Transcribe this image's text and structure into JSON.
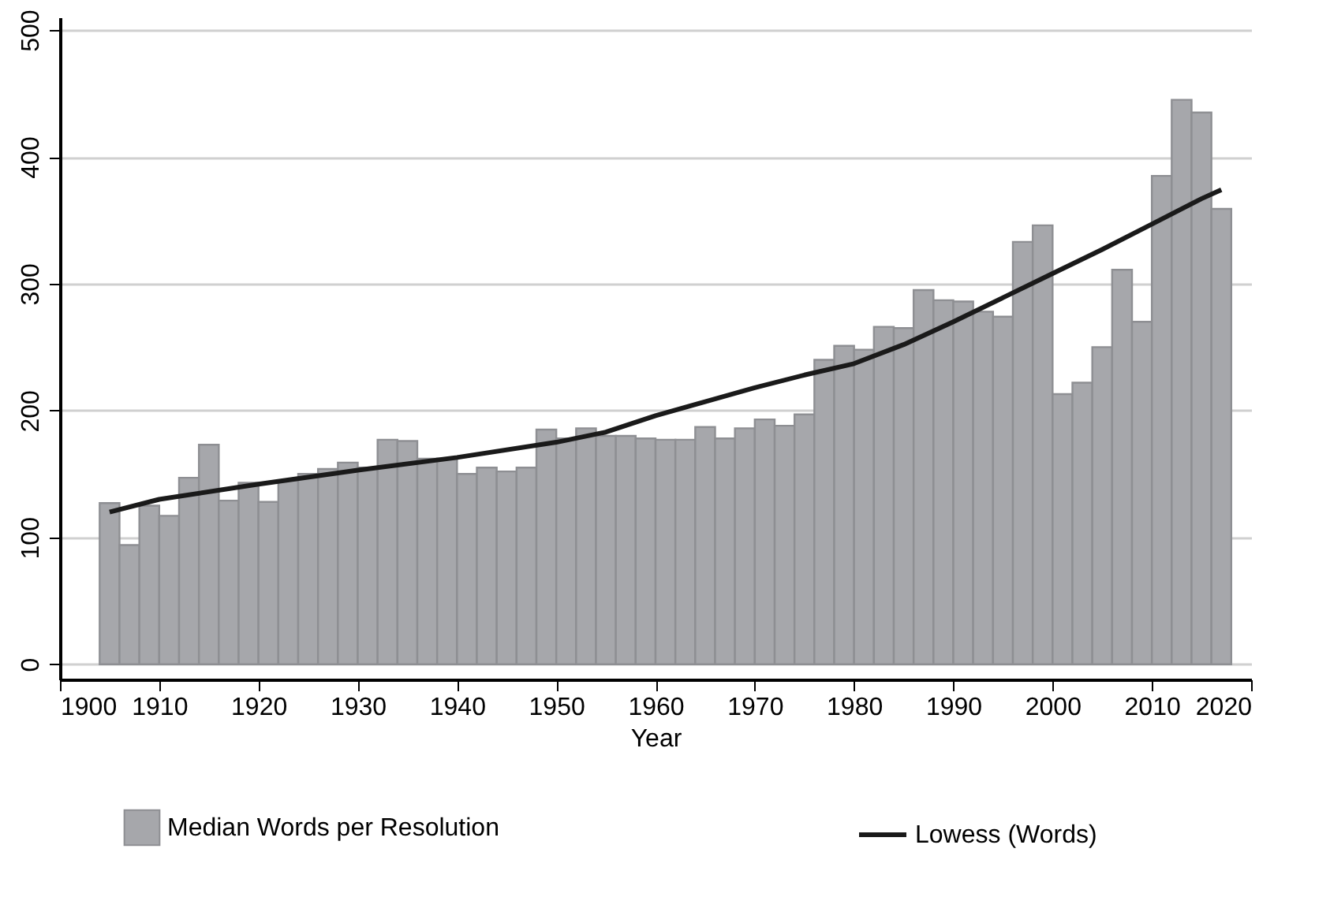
{
  "chart_data": {
    "type": "bar",
    "xlabel": "Year",
    "x": [
      1905,
      1907,
      1909,
      1911,
      1913,
      1915,
      1917,
      1919,
      1921,
      1923,
      1925,
      1927,
      1929,
      1931,
      1933,
      1935,
      1937,
      1939,
      1941,
      1943,
      1945,
      1947,
      1949,
      1951,
      1953,
      1955,
      1957,
      1959,
      1961,
      1963,
      1965,
      1967,
      1969,
      1971,
      1973,
      1975,
      1977,
      1979,
      1981,
      1983,
      1985,
      1987,
      1989,
      1991,
      1993,
      1995,
      1997,
      1999,
      2001,
      2003,
      2005,
      2007,
      2009,
      2011,
      2013,
      2015,
      2017
    ],
    "series": [
      {
        "name": "Median Words per Resolution",
        "color": "#a6a7ab",
        "values": [
          127,
          94,
          125,
          117,
          147,
          173,
          129,
          143,
          128,
          145,
          150,
          154,
          159,
          155,
          177,
          176,
          162,
          162,
          150,
          155,
          152,
          155,
          185,
          178,
          186,
          180,
          180,
          178,
          177,
          177,
          187,
          178,
          186,
          193,
          188,
          197,
          240,
          251,
          248,
          266,
          265,
          295,
          287,
          286,
          278,
          274,
          333,
          346,
          213,
          222,
          250,
          311,
          270,
          385,
          445,
          435,
          359
        ]
      },
      {
        "name": "Lowess (Words)",
        "type": "line",
        "color": "#1a1a1a",
        "x": [
          1905,
          1910,
          1920,
          1930,
          1940,
          1950,
          1955,
          1960,
          1965,
          1970,
          1975,
          1980,
          1985,
          1990,
          1995,
          2000,
          2005,
          2010,
          2015,
          2017
        ],
        "values": [
          120,
          130,
          142,
          153,
          163,
          175,
          183,
          196,
          207,
          218,
          228,
          237,
          252,
          270,
          289,
          308,
          327,
          347,
          367,
          374
        ]
      }
    ],
    "xlim": [
      1900,
      2020
    ],
    "xticks": [
      1900,
      1910,
      1920,
      1930,
      1940,
      1950,
      1960,
      1970,
      1980,
      1990,
      2000,
      2010,
      2020
    ],
    "ylim": [
      -12,
      510
    ],
    "yticks": [
      0,
      100,
      200,
      300,
      400,
      500
    ],
    "grid": "y",
    "legend": "bottom"
  }
}
